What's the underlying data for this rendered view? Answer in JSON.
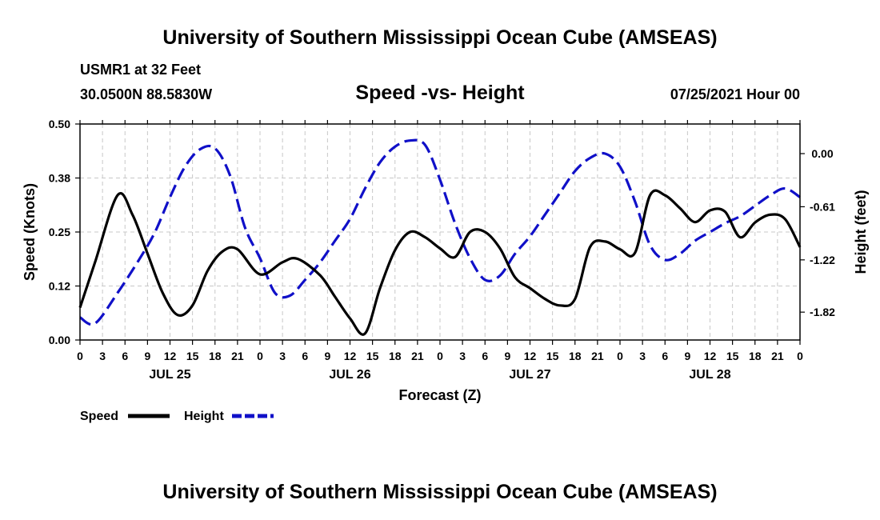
{
  "header": {
    "title": "University of Southern Mississippi Ocean Cube (AMSEAS)",
    "station": "USMR1 at 32 Feet",
    "coords": "30.0500N  88.5830W",
    "timestamp": "07/25/2021 Hour 00"
  },
  "footer": {
    "title": "University of Southern Mississippi Ocean Cube (AMSEAS)"
  },
  "chart_data": {
    "type": "line",
    "title": "Speed -vs- Height",
    "xlabel": "Forecast (Z)",
    "ylabel": "Speed (Knots)",
    "y2label": "Height (feet)",
    "xlim": [
      0,
      96
    ],
    "ylim": [
      0,
      0.5
    ],
    "y2lim": [
      -2.14,
      0.34
    ],
    "grid": true,
    "x_tick_values": [
      0,
      3,
      6,
      9,
      12,
      15,
      18,
      21,
      24,
      27,
      30,
      33,
      36,
      39,
      42,
      45,
      48,
      51,
      54,
      57,
      60,
      63,
      66,
      69,
      72,
      75,
      78,
      81,
      84,
      87,
      90,
      93,
      96
    ],
    "x_tick_labels": [
      "0",
      "3",
      "6",
      "9",
      "12",
      "15",
      "18",
      "21",
      "0",
      "3",
      "6",
      "9",
      "12",
      "15",
      "18",
      "21",
      "0",
      "3",
      "6",
      "9",
      "12",
      "15",
      "18",
      "21",
      "0",
      "3",
      "6",
      "9",
      "12",
      "15",
      "18",
      "21",
      "0"
    ],
    "day_labels": [
      {
        "hour": 12,
        "label": "JUL 25"
      },
      {
        "hour": 36,
        "label": "JUL 26"
      },
      {
        "hour": 60,
        "label": "JUL 27"
      },
      {
        "hour": 84,
        "label": "JUL 28"
      }
    ],
    "y_ticks": [
      {
        "value": 0.0,
        "label": "0.00"
      },
      {
        "value": 0.125,
        "label": "0.12"
      },
      {
        "value": 0.25,
        "label": "0.25"
      },
      {
        "value": 0.375,
        "label": "0.38"
      },
      {
        "value": 0.5,
        "label": "0.50"
      }
    ],
    "y2_ticks": [
      {
        "value": 0.0,
        "label": "0.00"
      },
      {
        "value": -0.61,
        "label": "-0.61"
      },
      {
        "value": -1.22,
        "label": "-1.22"
      },
      {
        "value": -1.82,
        "label": "-1.82"
      }
    ],
    "series": [
      {
        "name": "Speed",
        "axis": "left",
        "color": "#000000",
        "dash": "solid",
        "x": [
          0,
          2,
          5,
          7,
          9,
          11,
          13,
          15,
          17,
          19,
          21,
          24,
          27,
          29,
          32,
          34,
          36,
          38,
          40,
          42,
          44,
          46,
          48,
          50,
          52,
          54,
          56,
          58,
          60,
          62,
          64,
          66,
          68,
          70,
          72,
          74,
          76,
          78,
          80,
          82,
          84,
          86,
          88,
          90,
          92,
          94,
          96
        ],
        "values": [
          0.075,
          0.18,
          0.335,
          0.29,
          0.2,
          0.11,
          0.058,
          0.08,
          0.16,
          0.205,
          0.21,
          0.152,
          0.18,
          0.188,
          0.15,
          0.1,
          0.05,
          0.015,
          0.12,
          0.208,
          0.25,
          0.238,
          0.212,
          0.192,
          0.25,
          0.25,
          0.212,
          0.145,
          0.12,
          0.095,
          0.08,
          0.095,
          0.215,
          0.228,
          0.21,
          0.202,
          0.335,
          0.335,
          0.305,
          0.273,
          0.3,
          0.297,
          0.238,
          0.272,
          0.29,
          0.28,
          0.215
        ]
      },
      {
        "name": "Height",
        "axis": "right",
        "color": "#1010c8",
        "dash": "dashed",
        "x": [
          0,
          2,
          5,
          8,
          10,
          12,
          14,
          16,
          18,
          20,
          22,
          24,
          26,
          28,
          30,
          32,
          34,
          36,
          38,
          40,
          42,
          44,
          46,
          48,
          50,
          52,
          54,
          56,
          58,
          60,
          62,
          64,
          66,
          68,
          70,
          72,
          74,
          76,
          78,
          80,
          82,
          84,
          86,
          88,
          90,
          92,
          94,
          96
        ],
        "values": [
          -1.88,
          -1.95,
          -1.6,
          -1.2,
          -0.9,
          -0.5,
          -0.15,
          0.05,
          0.06,
          -0.25,
          -0.85,
          -1.2,
          -1.6,
          -1.63,
          -1.45,
          -1.25,
          -1.0,
          -0.75,
          -0.4,
          -0.1,
          0.08,
          0.15,
          0.1,
          -0.3,
          -0.8,
          -1.2,
          -1.45,
          -1.4,
          -1.15,
          -0.95,
          -0.7,
          -0.45,
          -0.2,
          -0.05,
          0.0,
          -0.15,
          -0.55,
          -1.05,
          -1.22,
          -1.15,
          -1.0,
          -0.9,
          -0.8,
          -0.72,
          -0.6,
          -0.48,
          -0.4,
          -0.5
        ]
      }
    ],
    "legend": [
      {
        "label": "Speed",
        "color": "#000000",
        "dash": "solid"
      },
      {
        "label": "Height",
        "color": "#1010c8",
        "dash": "dashed"
      }
    ],
    "legend_position": "bottom-left"
  }
}
